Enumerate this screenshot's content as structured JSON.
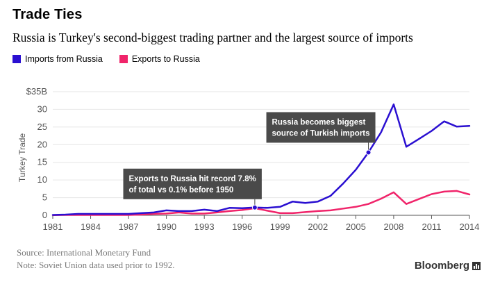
{
  "header": {
    "title": "Trade Ties",
    "subtitle": "Russia is Turkey's second-biggest trading partner and the largest source of imports"
  },
  "legend": {
    "items": [
      {
        "label": "Imports from Russia",
        "color": "#2a0fd1"
      },
      {
        "label": "Exports to Russia",
        "color": "#f0246a"
      }
    ]
  },
  "footer": {
    "source": "Source: International Monetary Fund",
    "note": "Note: Soviet Union data used prior to 1992.",
    "brand": "Bloomberg"
  },
  "chart_data": {
    "type": "line",
    "title": "Trade Ties",
    "ylabel": "Turkey Trade",
    "xlabel": "",
    "xlim": [
      1981,
      2014
    ],
    "ylim": [
      0,
      35
    ],
    "x_ticks": [
      1981,
      1984,
      1987,
      1990,
      1993,
      1996,
      1999,
      2002,
      2005,
      2008,
      2011,
      2014
    ],
    "y_ticks": [
      0,
      5,
      10,
      15,
      20,
      25,
      30,
      35
    ],
    "y_tick_labels": [
      "0",
      "5",
      "10",
      "15",
      "20",
      "25",
      "30",
      "$35B"
    ],
    "x": [
      1981,
      1982,
      1983,
      1984,
      1985,
      1986,
      1987,
      1988,
      1989,
      1990,
      1991,
      1992,
      1993,
      1994,
      1995,
      1996,
      1997,
      1998,
      1999,
      2000,
      2001,
      2002,
      2003,
      2004,
      2005,
      2006,
      2007,
      2008,
      2009,
      2010,
      2011,
      2012,
      2013,
      2014
    ],
    "series": [
      {
        "name": "Imports from Russia",
        "color": "#2a0fd1",
        "values": [
          0.1,
          0.2,
          0.4,
          0.4,
          0.4,
          0.4,
          0.4,
          0.6,
          0.8,
          1.4,
          1.2,
          1.2,
          1.6,
          1.2,
          2.1,
          2.0,
          2.2,
          2.1,
          2.4,
          3.9,
          3.5,
          3.9,
          5.5,
          9.0,
          12.9,
          17.8,
          23.5,
          31.4,
          19.4,
          21.6,
          23.9,
          26.6,
          25.1,
          25.3
        ]
      },
      {
        "name": "Exports to Russia",
        "color": "#f0246a",
        "values": [
          0.05,
          0.1,
          0.1,
          0.1,
          0.1,
          0.1,
          0.1,
          0.2,
          0.4,
          0.5,
          0.8,
          0.5,
          0.5,
          0.8,
          1.2,
          1.5,
          2.0,
          1.3,
          0.6,
          0.6,
          0.9,
          1.2,
          1.4,
          1.9,
          2.4,
          3.2,
          4.7,
          6.5,
          3.2,
          4.6,
          6.0,
          6.7,
          6.9,
          5.9
        ]
      }
    ],
    "annotations": [
      {
        "text": "Russia becomes biggest source of Turkish imports",
        "lines": [
          "Russia becomes biggest",
          "source of Turkish imports"
        ],
        "x": 2006,
        "y": 17.8,
        "side": "left"
      },
      {
        "text": "Exports to Russia hit record 7.8% of total vs 0.1% before 1950",
        "lines": [
          "Exports to Russia hit record 7.8%",
          "of total vs 0.1% before 1950"
        ],
        "x": 1997,
        "y": 2.2,
        "side": "left"
      }
    ]
  }
}
